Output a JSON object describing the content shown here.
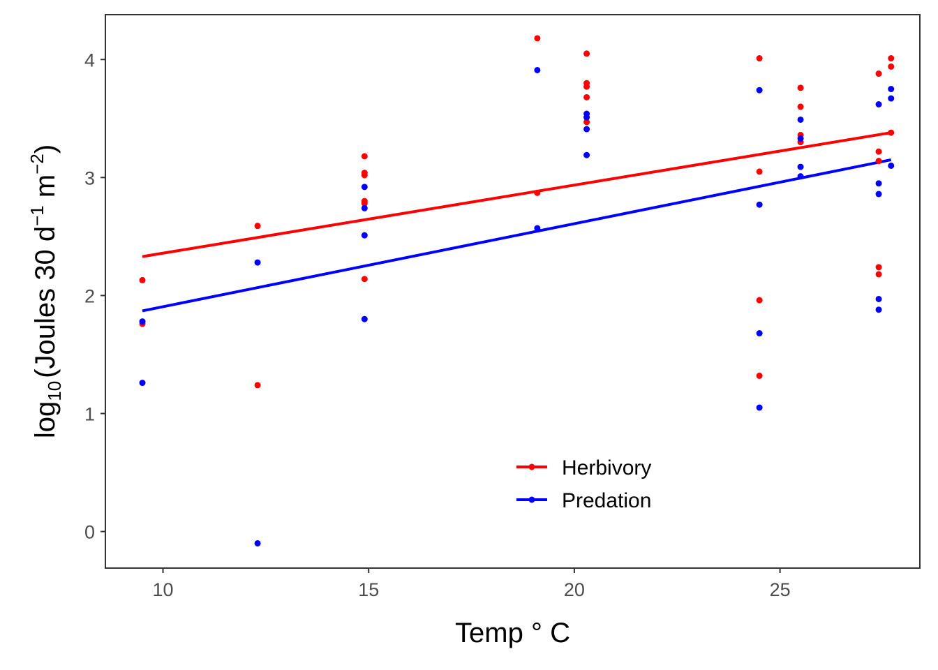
{
  "chart_data": {
    "type": "scatter",
    "xlabel": "Temp ° C",
    "ylabel": {
      "prefix": "log",
      "prefix_subscript": "10",
      "text": "(Joules 30 d",
      "d_exponent": "−1",
      "m_text": " m",
      "m_exponent": "−2",
      "close": ")"
    },
    "xlim": [
      8.6,
      28.4
    ],
    "ylim": [
      -0.31,
      4.38
    ],
    "x_ticks": [
      10,
      15,
      20,
      25
    ],
    "x_tick_labels": [
      "10",
      "15",
      "20",
      "25"
    ],
    "y_ticks": [
      0,
      1,
      2,
      3,
      4
    ],
    "y_tick_labels": [
      "0",
      "1",
      "2",
      "3",
      "4"
    ],
    "grid": false,
    "legend_position": "bottom-center",
    "series": [
      {
        "name": "Herbivory",
        "color": "#ff0000",
        "points": [
          [
            9.5,
            2.13
          ],
          [
            9.5,
            1.76
          ],
          [
            12.3,
            2.59
          ],
          [
            12.3,
            1.24
          ],
          [
            14.9,
            3.18
          ],
          [
            14.9,
            3.04
          ],
          [
            14.9,
            3.02
          ],
          [
            14.9,
            2.8
          ],
          [
            14.9,
            2.78
          ],
          [
            14.9,
            2.14
          ],
          [
            19.1,
            4.18
          ],
          [
            19.1,
            2.87
          ],
          [
            20.3,
            4.05
          ],
          [
            20.3,
            3.8
          ],
          [
            20.3,
            3.77
          ],
          [
            20.3,
            3.68
          ],
          [
            20.3,
            3.47
          ],
          [
            24.5,
            4.01
          ],
          [
            24.5,
            3.05
          ],
          [
            24.5,
            1.96
          ],
          [
            24.5,
            1.32
          ],
          [
            25.5,
            3.76
          ],
          [
            25.5,
            3.6
          ],
          [
            25.5,
            3.36
          ],
          [
            25.5,
            3.3
          ],
          [
            27.4,
            3.88
          ],
          [
            27.4,
            3.22
          ],
          [
            27.4,
            3.14
          ],
          [
            27.4,
            2.24
          ],
          [
            27.4,
            2.18
          ],
          [
            27.7,
            4.01
          ],
          [
            27.7,
            3.94
          ],
          [
            27.7,
            3.38
          ]
        ],
        "fit": [
          [
            9.5,
            2.33
          ],
          [
            27.7,
            3.38
          ]
        ]
      },
      {
        "name": "Predation",
        "color": "#0000ff",
        "points": [
          [
            9.5,
            1.78
          ],
          [
            9.5,
            1.26
          ],
          [
            12.3,
            2.28
          ],
          [
            12.3,
            -0.1
          ],
          [
            14.9,
            2.92
          ],
          [
            14.9,
            2.74
          ],
          [
            14.9,
            2.51
          ],
          [
            14.9,
            1.8
          ],
          [
            19.1,
            3.91
          ],
          [
            19.1,
            2.57
          ],
          [
            20.3,
            3.54
          ],
          [
            20.3,
            3.51
          ],
          [
            20.3,
            3.41
          ],
          [
            20.3,
            3.19
          ],
          [
            24.5,
            3.74
          ],
          [
            24.5,
            2.77
          ],
          [
            24.5,
            1.68
          ],
          [
            24.5,
            1.05
          ],
          [
            25.5,
            3.49
          ],
          [
            25.5,
            3.33
          ],
          [
            25.5,
            3.09
          ],
          [
            25.5,
            3.01
          ],
          [
            27.4,
            3.62
          ],
          [
            27.4,
            2.95
          ],
          [
            27.4,
            2.86
          ],
          [
            27.4,
            1.97
          ],
          [
            27.4,
            1.88
          ],
          [
            27.7,
            3.75
          ],
          [
            27.7,
            3.67
          ],
          [
            27.7,
            3.1
          ]
        ],
        "fit": [
          [
            9.5,
            1.87
          ],
          [
            27.7,
            3.15
          ]
        ]
      }
    ]
  }
}
